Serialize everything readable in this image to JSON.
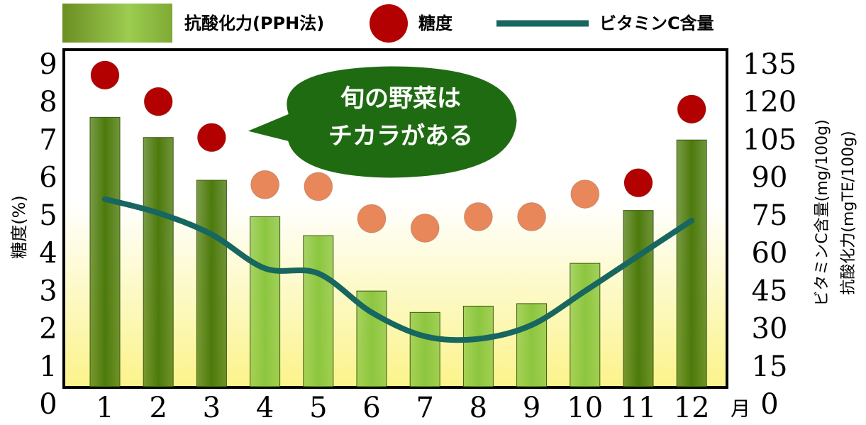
{
  "chart_data": {
    "type": "combo",
    "categories": [
      "1",
      "2",
      "3",
      "4",
      "5",
      "6",
      "7",
      "8",
      "9",
      "10",
      "11",
      "12"
    ],
    "x_unit": "月",
    "ylabel": "糖度(%)",
    "y2labels": [
      "ビタミンC含量(mg/100g)",
      "抗酸化力(mgTE/100g)"
    ],
    "annotation": [
      "旬の野菜は",
      "チカラがある"
    ],
    "ylim": [
      0,
      9
    ],
    "yticks": [
      0,
      1,
      2,
      3,
      4,
      5,
      6,
      7,
      8,
      9
    ],
    "y2lim": [
      0,
      135
    ],
    "y2ticks": [
      0,
      15,
      30,
      45,
      60,
      75,
      90,
      105,
      120,
      135
    ],
    "series": [
      {
        "name": "抗酸化力(PPH法)",
        "type": "bar",
        "axis": "y2",
        "color": "#6b8e23",
        "colors": [
          "#4d7a0c",
          "#4d7a0c",
          "#4d7a0c",
          "#8cc63f",
          "#8cc63f",
          "#8cc63f",
          "#8cc63f",
          "#8cc63f",
          "#8cc63f",
          "#8cc63f",
          "#4d7a0c",
          "#4d7a0c"
        ],
        "values": [
          107,
          99,
          82,
          67.5,
          60,
          38,
          29.5,
          32,
          33,
          49,
          70,
          98
        ]
      },
      {
        "name": "糖度",
        "type": "scatter",
        "axis": "y",
        "color": "#b30000",
        "colors": [
          "#b30000",
          "#b30000",
          "#b30000",
          "#e8875a",
          "#e8875a",
          "#e8875a",
          "#e8875a",
          "#e8875a",
          "#e8875a",
          "#e8875a",
          "#b30000",
          "#b30000"
        ],
        "values": [
          8.25,
          7.55,
          6.6,
          5.35,
          5.3,
          4.45,
          4.2,
          4.5,
          4.5,
          5.1,
          5.4,
          7.35
        ]
      },
      {
        "name": "ビタミンC含量",
        "type": "line",
        "axis": "y2",
        "color": "#17665f",
        "values": [
          74.5,
          69,
          60.5,
          47,
          45,
          29.5,
          20,
          19,
          24.5,
          38,
          52,
          66
        ]
      }
    ]
  }
}
